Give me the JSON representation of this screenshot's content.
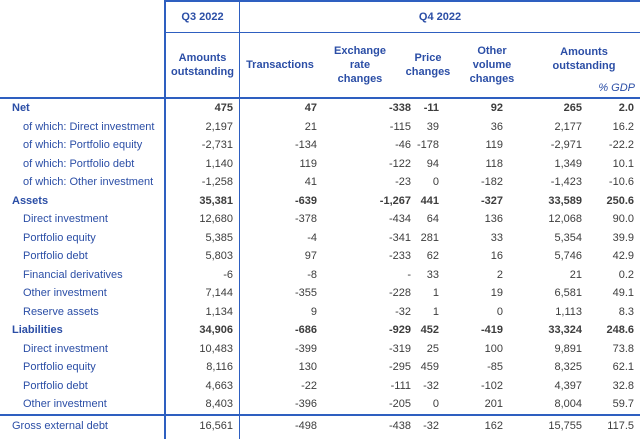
{
  "colors": {
    "text_blue": "#2b4ea6",
    "border_blue": "#2e5fc0",
    "number_gray": "#3d3d3d"
  },
  "chart_data": {
    "type": "table",
    "period_headers": {
      "q3": "Q3 2022",
      "q4": "Q4 2022"
    },
    "column_headers": {
      "q3_amounts": "Amounts outstanding",
      "transactions": "Transactions",
      "exchange_rate": "Exchange rate changes",
      "price": "Price changes",
      "other_volume": "Other volume changes",
      "q4_amounts": "Amounts outstanding",
      "gdp_label": "% GDP"
    },
    "rows": [
      {
        "label": "Net",
        "style": "section",
        "values": [
          "475",
          "47",
          "-338",
          "-11",
          "92",
          "265",
          "2.0"
        ]
      },
      {
        "label": "of which: Direct investment",
        "style": "ofwhich",
        "values": [
          "2,197",
          "21",
          "-115",
          "39",
          "36",
          "2,177",
          "16.2"
        ]
      },
      {
        "label": "of which: Portfolio equity",
        "style": "ofwhich",
        "values": [
          "-2,731",
          "-134",
          "-46",
          "-178",
          "119",
          "-2,971",
          "-22.2"
        ]
      },
      {
        "label": "of which: Portfolio debt",
        "style": "ofwhich",
        "values": [
          "1,140",
          "119",
          "-122",
          "94",
          "118",
          "1,349",
          "10.1"
        ]
      },
      {
        "label": "of which: Other investment",
        "style": "ofwhich",
        "values": [
          "-1,258",
          "41",
          "-23",
          "0",
          "-182",
          "-1,423",
          "-10.6"
        ]
      },
      {
        "label": "Assets",
        "style": "section",
        "values": [
          "35,381",
          "-639",
          "-1,267",
          "441",
          "-327",
          "33,589",
          "250.6"
        ]
      },
      {
        "label": "Direct investment",
        "style": "sub",
        "values": [
          "12,680",
          "-378",
          "-434",
          "64",
          "136",
          "12,068",
          "90.0"
        ]
      },
      {
        "label": "Portfolio equity",
        "style": "sub",
        "values": [
          "5,385",
          "-4",
          "-341",
          "281",
          "33",
          "5,354",
          "39.9"
        ]
      },
      {
        "label": "Portfolio debt",
        "style": "sub",
        "values": [
          "5,803",
          "97",
          "-233",
          "62",
          "16",
          "5,746",
          "42.9"
        ]
      },
      {
        "label": "Financial derivatives",
        "style": "sub",
        "values": [
          "-6",
          "-8",
          "-",
          "33",
          "2",
          "21",
          "0.2"
        ]
      },
      {
        "label": "Other investment",
        "style": "sub",
        "values": [
          "7,144",
          "-355",
          "-228",
          "1",
          "19",
          "6,581",
          "49.1"
        ]
      },
      {
        "label": "Reserve assets",
        "style": "sub",
        "values": [
          "1,134",
          "9",
          "-32",
          "1",
          "0",
          "1,113",
          "8.3"
        ]
      },
      {
        "label": "Liabilities",
        "style": "section",
        "values": [
          "34,906",
          "-686",
          "-929",
          "452",
          "-419",
          "33,324",
          "248.6"
        ]
      },
      {
        "label": "Direct investment",
        "style": "sub",
        "values": [
          "10,483",
          "-399",
          "-319",
          "25",
          "100",
          "9,891",
          "73.8"
        ]
      },
      {
        "label": "Portfolio equity",
        "style": "sub",
        "values": [
          "8,116",
          "130",
          "-295",
          "459",
          "-85",
          "8,325",
          "62.1"
        ]
      },
      {
        "label": "Portfolio debt",
        "style": "sub",
        "values": [
          "4,663",
          "-22",
          "-111",
          "-32",
          "-102",
          "4,397",
          "32.8"
        ]
      },
      {
        "label": "Other investment",
        "style": "sub",
        "values": [
          "8,403",
          "-396",
          "-205",
          "0",
          "201",
          "8,004",
          "59.7"
        ]
      },
      {
        "label": "Gross external debt",
        "style": "footer",
        "values": [
          "16,561",
          "-498",
          "-438",
          "-32",
          "162",
          "15,755",
          "117.5"
        ]
      }
    ]
  }
}
